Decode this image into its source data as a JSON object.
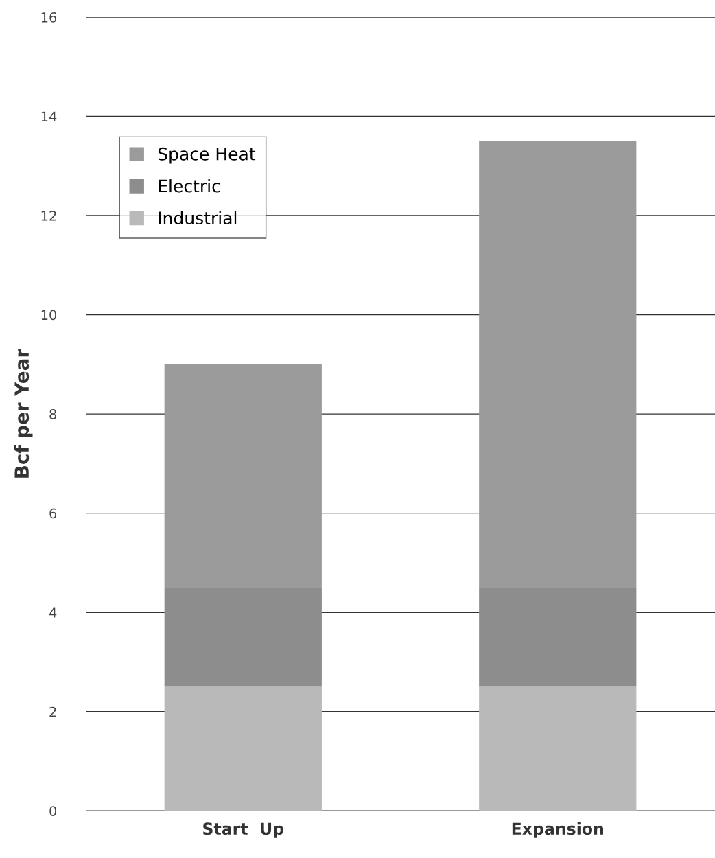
{
  "chart_data": {
    "type": "bar",
    "stacked": true,
    "ylabel": "Bcf per Year",
    "categories": [
      "Start  Up",
      "Expansion"
    ],
    "series": [
      {
        "name": "Industrial",
        "color": "#b9b9b9",
        "values": [
          2.5,
          2.5
        ]
      },
      {
        "name": "Electric",
        "color": "#8d8d8d",
        "values": [
          2.0,
          2.0
        ]
      },
      {
        "name": "Space Heat",
        "color": "#9b9b9b",
        "values": [
          4.5,
          9.0
        ]
      }
    ],
    "ylim": [
      0,
      16
    ],
    "yticks": [
      0,
      2,
      4,
      6,
      8,
      10,
      12,
      14,
      16
    ],
    "grid": "y",
    "legend": "top left"
  }
}
